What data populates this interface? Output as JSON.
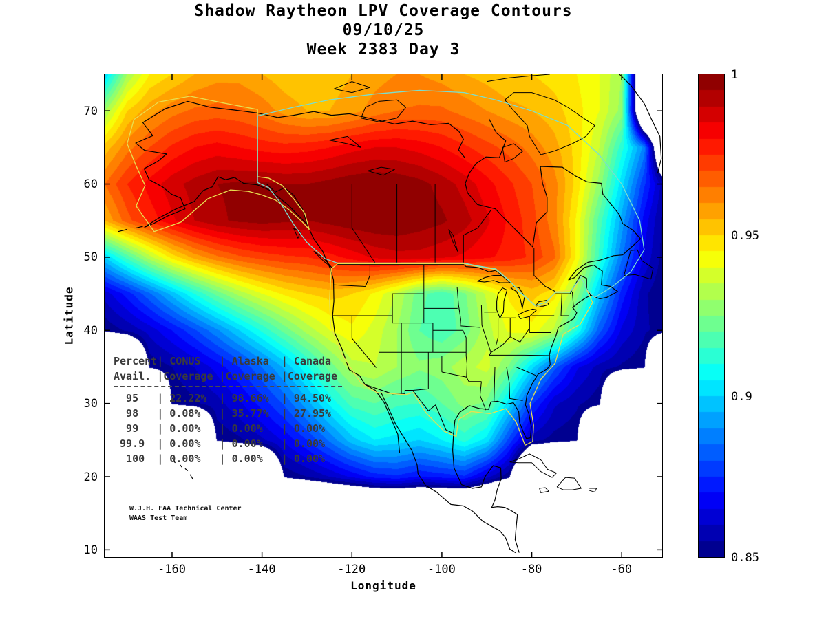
{
  "title": {
    "line1": "Shadow Raytheon LPV Coverage Contours",
    "line2": "09/10/25",
    "line3": "Week 2383 Day 3"
  },
  "chart_data": {
    "type": "heatmap",
    "subtype": "filled-contour-coverage-map",
    "title": "Shadow Raytheon LPV Coverage Contours 09/10/25 Week 2383 Day 3",
    "xlabel": "Longitude",
    "ylabel": "Latitude",
    "xlim": [
      -175,
      -51
    ],
    "ylim": [
      9,
      75
    ],
    "xticks": [
      -160,
      -140,
      -120,
      -100,
      -80,
      -60
    ],
    "yticks": [
      10,
      20,
      30,
      40,
      50,
      60,
      70
    ],
    "grid_on": false,
    "colorbar": {
      "min": 0.85,
      "max": 1.0,
      "levels": 30,
      "colormap": "jet",
      "ticks": [
        0.85,
        0.9,
        0.95,
        1
      ],
      "tick_labels": [
        "0.85",
        "0.9",
        "0.95",
        "1"
      ],
      "position": "right"
    },
    "grid": {
      "comment": "LPV availability values sampled on 5-degree grid; null = below 0.85 (white)",
      "lon_start": -175,
      "lon_step": 5,
      "lat_start": 75,
      "lat_step": -5,
      "values": [
        [
          0.9,
          0.93,
          0.945,
          0.95,
          0.955,
          0.958,
          0.958,
          0.955,
          0.952,
          0.95,
          0.952,
          0.955,
          0.958,
          0.96,
          0.96,
          0.958,
          0.955,
          0.953,
          0.95,
          0.95,
          0.948,
          0.945,
          0.94,
          0.93,
          null,
          null
        ],
        [
          0.93,
          0.95,
          0.958,
          0.963,
          0.966,
          0.967,
          0.966,
          0.963,
          0.958,
          0.955,
          0.955,
          0.958,
          0.962,
          0.965,
          0.966,
          0.966,
          0.963,
          0.96,
          0.957,
          0.955,
          0.952,
          0.947,
          0.94,
          0.928,
          null,
          null
        ],
        [
          0.952,
          0.963,
          0.97,
          0.976,
          0.98,
          0.982,
          0.98,
          0.978,
          0.977,
          0.978,
          0.98,
          0.983,
          0.985,
          0.985,
          0.983,
          0.98,
          0.976,
          0.972,
          0.968,
          0.963,
          0.957,
          0.948,
          0.935,
          0.912,
          0.888,
          null
        ],
        [
          0.965,
          0.975,
          0.982,
          0.988,
          0.992,
          0.995,
          0.996,
          0.996,
          0.995,
          0.995,
          0.997,
          0.999,
          1.0,
          0.999,
          0.997,
          0.993,
          0.988,
          0.982,
          0.976,
          0.97,
          0.962,
          0.948,
          0.928,
          0.902,
          0.876,
          0.854
        ],
        [
          0.955,
          0.968,
          0.977,
          0.984,
          0.99,
          0.994,
          0.996,
          0.997,
          0.996,
          0.995,
          0.997,
          0.999,
          1.0,
          1.0,
          0.998,
          0.996,
          0.992,
          0.986,
          0.979,
          0.972,
          0.962,
          0.944,
          0.918,
          0.893,
          0.868,
          0.851
        ],
        [
          0.9,
          0.917,
          0.933,
          0.947,
          0.957,
          0.964,
          0.969,
          0.972,
          0.974,
          0.975,
          0.978,
          0.982,
          0.986,
          0.988,
          0.988,
          0.986,
          0.984,
          0.981,
          0.978,
          0.974,
          0.966,
          0.944,
          0.914,
          0.886,
          0.864,
          0.851
        ],
        [
          0.862,
          0.872,
          0.884,
          0.897,
          0.91,
          0.922,
          0.932,
          0.94,
          0.946,
          0.95,
          0.952,
          0.95,
          0.944,
          0.934,
          0.922,
          0.916,
          0.924,
          0.936,
          0.946,
          0.952,
          0.947,
          0.928,
          0.898,
          0.873,
          0.856,
          0.85
        ],
        [
          0.851,
          0.856,
          0.862,
          0.87,
          0.879,
          0.889,
          0.9,
          0.911,
          0.922,
          0.932,
          0.94,
          0.944,
          0.938,
          0.93,
          0.92,
          0.916,
          0.922,
          0.933,
          0.941,
          0.943,
          0.934,
          0.91,
          0.882,
          0.864,
          0.856,
          0.852
        ],
        [
          null,
          null,
          0.851,
          0.855,
          0.86,
          0.867,
          0.875,
          0.885,
          0.896,
          0.909,
          0.922,
          0.933,
          0.935,
          0.93,
          0.926,
          0.928,
          0.933,
          0.937,
          0.924,
          0.902,
          0.882,
          0.866,
          0.858,
          0.854,
          0.851,
          null
        ],
        [
          null,
          null,
          null,
          0.851,
          0.854,
          0.858,
          0.864,
          0.872,
          0.881,
          0.893,
          0.906,
          0.917,
          0.92,
          0.916,
          0.915,
          0.92,
          0.927,
          0.924,
          0.902,
          0.876,
          0.861,
          0.856,
          0.852,
          null,
          null,
          null
        ],
        [
          null,
          null,
          null,
          null,
          null,
          0.851,
          0.854,
          0.859,
          0.866,
          0.875,
          0.886,
          0.898,
          0.905,
          0.903,
          0.9,
          0.905,
          0.912,
          0.903,
          0.878,
          0.857,
          0.853,
          0.851,
          null,
          null,
          null,
          null
        ],
        [
          null,
          null,
          null,
          null,
          null,
          null,
          null,
          null,
          0.851,
          0.855,
          0.86,
          0.866,
          0.872,
          0.874,
          0.87,
          0.872,
          0.874,
          0.862,
          0.851,
          null,
          null,
          null,
          null,
          null,
          null,
          null
        ],
        [
          null,
          null,
          null,
          null,
          null,
          null,
          null,
          null,
          null,
          null,
          null,
          null,
          null,
          null,
          null,
          null,
          null,
          null,
          null,
          null,
          null,
          null,
          null,
          null,
          null,
          null
        ],
        [
          null,
          null,
          null,
          null,
          null,
          null,
          null,
          null,
          null,
          null,
          null,
          null,
          null,
          null,
          null,
          null,
          null,
          null,
          null,
          null,
          null,
          null,
          null,
          null,
          null,
          null
        ]
      ]
    }
  },
  "coverage_table": {
    "headers": [
      "Percent",
      "CONUS",
      "Alaska",
      "Canada"
    ],
    "subheaders": [
      "Avail.",
      "Coverage",
      "Coverage",
      "Coverage"
    ],
    "rows": [
      [
        "95",
        "22.22%",
        "98.66%",
        "94.50%"
      ],
      [
        "98",
        "0.08%",
        "35.77%",
        "27.95%"
      ],
      [
        "99",
        "0.00%",
        "0.00%",
        "0.00%"
      ],
      [
        "99.9",
        "0.00%",
        "0.00%",
        "0.00%"
      ],
      [
        "100",
        "0.00%",
        "0.00%",
        "0.00%"
      ]
    ]
  },
  "footnote": {
    "line1": "W.J.H. FAA Technical Center",
    "line2": "WAAS Test Team"
  },
  "colors": {
    "conus_boundary": "#e8e050",
    "alaska_boundary": "#e8e050",
    "canada_boundary": "#7adfcf",
    "coastline": "#000000",
    "background": "#ffffff"
  }
}
